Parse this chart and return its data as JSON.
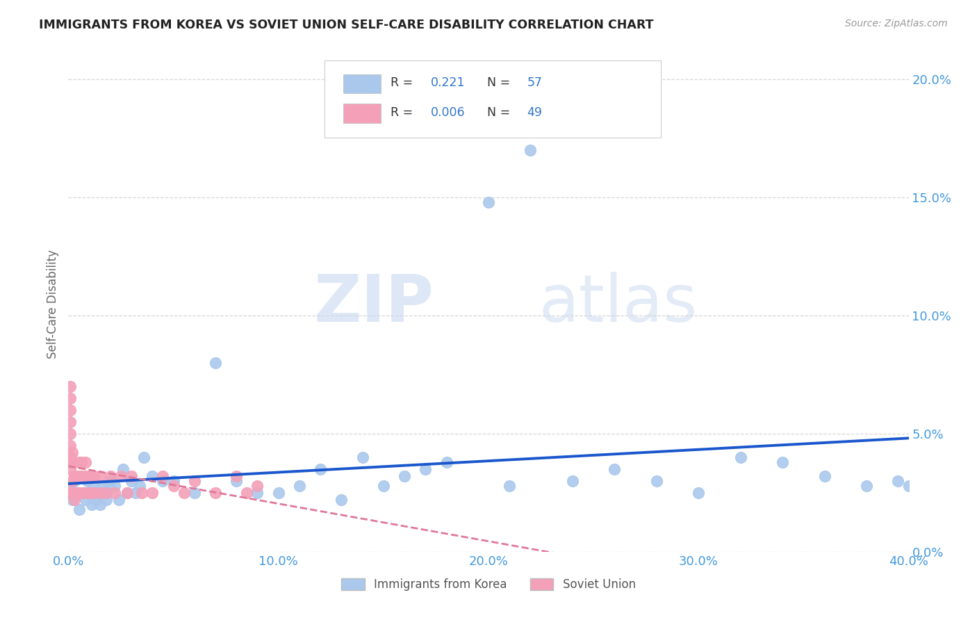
{
  "title": "IMMIGRANTS FROM KOREA VS SOVIET UNION SELF-CARE DISABILITY CORRELATION CHART",
  "source": "Source: ZipAtlas.com",
  "tick_color": "#4499dd",
  "ylabel": "Self-Care Disability",
  "xlim": [
    0.0,
    0.4
  ],
  "ylim": [
    0.0,
    0.21
  ],
  "xticks": [
    0.0,
    0.1,
    0.2,
    0.3,
    0.4
  ],
  "yticks": [
    0.0,
    0.05,
    0.1,
    0.15,
    0.2
  ],
  "xtick_labels": [
    "0.0%",
    "10.0%",
    "20.0%",
    "30.0%",
    "40.0%"
  ],
  "ytick_labels": [
    "0.0%",
    "5.0%",
    "10.0%",
    "15.0%",
    "20.0%"
  ],
  "korea_R": 0.221,
  "korea_N": 57,
  "soviet_R": 0.006,
  "soviet_N": 49,
  "korea_color": "#aac8ec",
  "soviet_color": "#f4a0b8",
  "korea_line_color": "#1a56cc",
  "soviet_line_color": "#e07898",
  "watermark_zip": "ZIP",
  "watermark_atlas": "atlas",
  "background_color": "#ffffff",
  "legend_label_color": "#333333",
  "legend_value_color": "#3377cc",
  "korea_x": [
    0.001,
    0.002,
    0.003,
    0.004,
    0.005,
    0.006,
    0.007,
    0.008,
    0.009,
    0.01,
    0.011,
    0.012,
    0.013,
    0.014,
    0.015,
    0.016,
    0.017,
    0.018,
    0.019,
    0.02,
    0.022,
    0.024,
    0.026,
    0.028,
    0.03,
    0.032,
    0.034,
    0.036,
    0.04,
    0.045,
    0.05,
    0.06,
    0.07,
    0.08,
    0.09,
    0.1,
    0.11,
    0.12,
    0.13,
    0.14,
    0.15,
    0.16,
    0.17,
    0.18,
    0.2,
    0.21,
    0.22,
    0.24,
    0.26,
    0.28,
    0.3,
    0.32,
    0.34,
    0.36,
    0.38,
    0.395,
    0.4
  ],
  "korea_y": [
    0.028,
    0.022,
    0.03,
    0.025,
    0.018,
    0.032,
    0.025,
    0.022,
    0.03,
    0.025,
    0.02,
    0.028,
    0.022,
    0.025,
    0.02,
    0.028,
    0.025,
    0.022,
    0.028,
    0.03,
    0.028,
    0.022,
    0.035,
    0.025,
    0.03,
    0.025,
    0.028,
    0.04,
    0.032,
    0.03,
    0.03,
    0.025,
    0.08,
    0.03,
    0.025,
    0.025,
    0.028,
    0.035,
    0.022,
    0.04,
    0.028,
    0.032,
    0.035,
    0.038,
    0.148,
    0.028,
    0.17,
    0.03,
    0.035,
    0.03,
    0.025,
    0.04,
    0.038,
    0.032,
    0.028,
    0.03,
    0.028
  ],
  "soviet_x": [
    0.001,
    0.001,
    0.001,
    0.001,
    0.001,
    0.001,
    0.001,
    0.001,
    0.001,
    0.002,
    0.002,
    0.002,
    0.002,
    0.003,
    0.003,
    0.003,
    0.004,
    0.004,
    0.005,
    0.005,
    0.005,
    0.006,
    0.006,
    0.007,
    0.008,
    0.008,
    0.009,
    0.01,
    0.01,
    0.012,
    0.012,
    0.015,
    0.015,
    0.018,
    0.02,
    0.022,
    0.025,
    0.028,
    0.03,
    0.035,
    0.04,
    0.045,
    0.05,
    0.055,
    0.06,
    0.07,
    0.08,
    0.085,
    0.09
  ],
  "soviet_y": [
    0.035,
    0.04,
    0.045,
    0.05,
    0.055,
    0.025,
    0.06,
    0.065,
    0.07,
    0.03,
    0.038,
    0.042,
    0.025,
    0.032,
    0.038,
    0.022,
    0.032,
    0.025,
    0.038,
    0.032,
    0.025,
    0.032,
    0.038,
    0.025,
    0.032,
    0.038,
    0.025,
    0.032,
    0.025,
    0.025,
    0.032,
    0.032,
    0.025,
    0.025,
    0.032,
    0.025,
    0.032,
    0.025,
    0.032,
    0.025,
    0.025,
    0.032,
    0.028,
    0.025,
    0.03,
    0.025,
    0.032,
    0.025,
    0.028
  ]
}
